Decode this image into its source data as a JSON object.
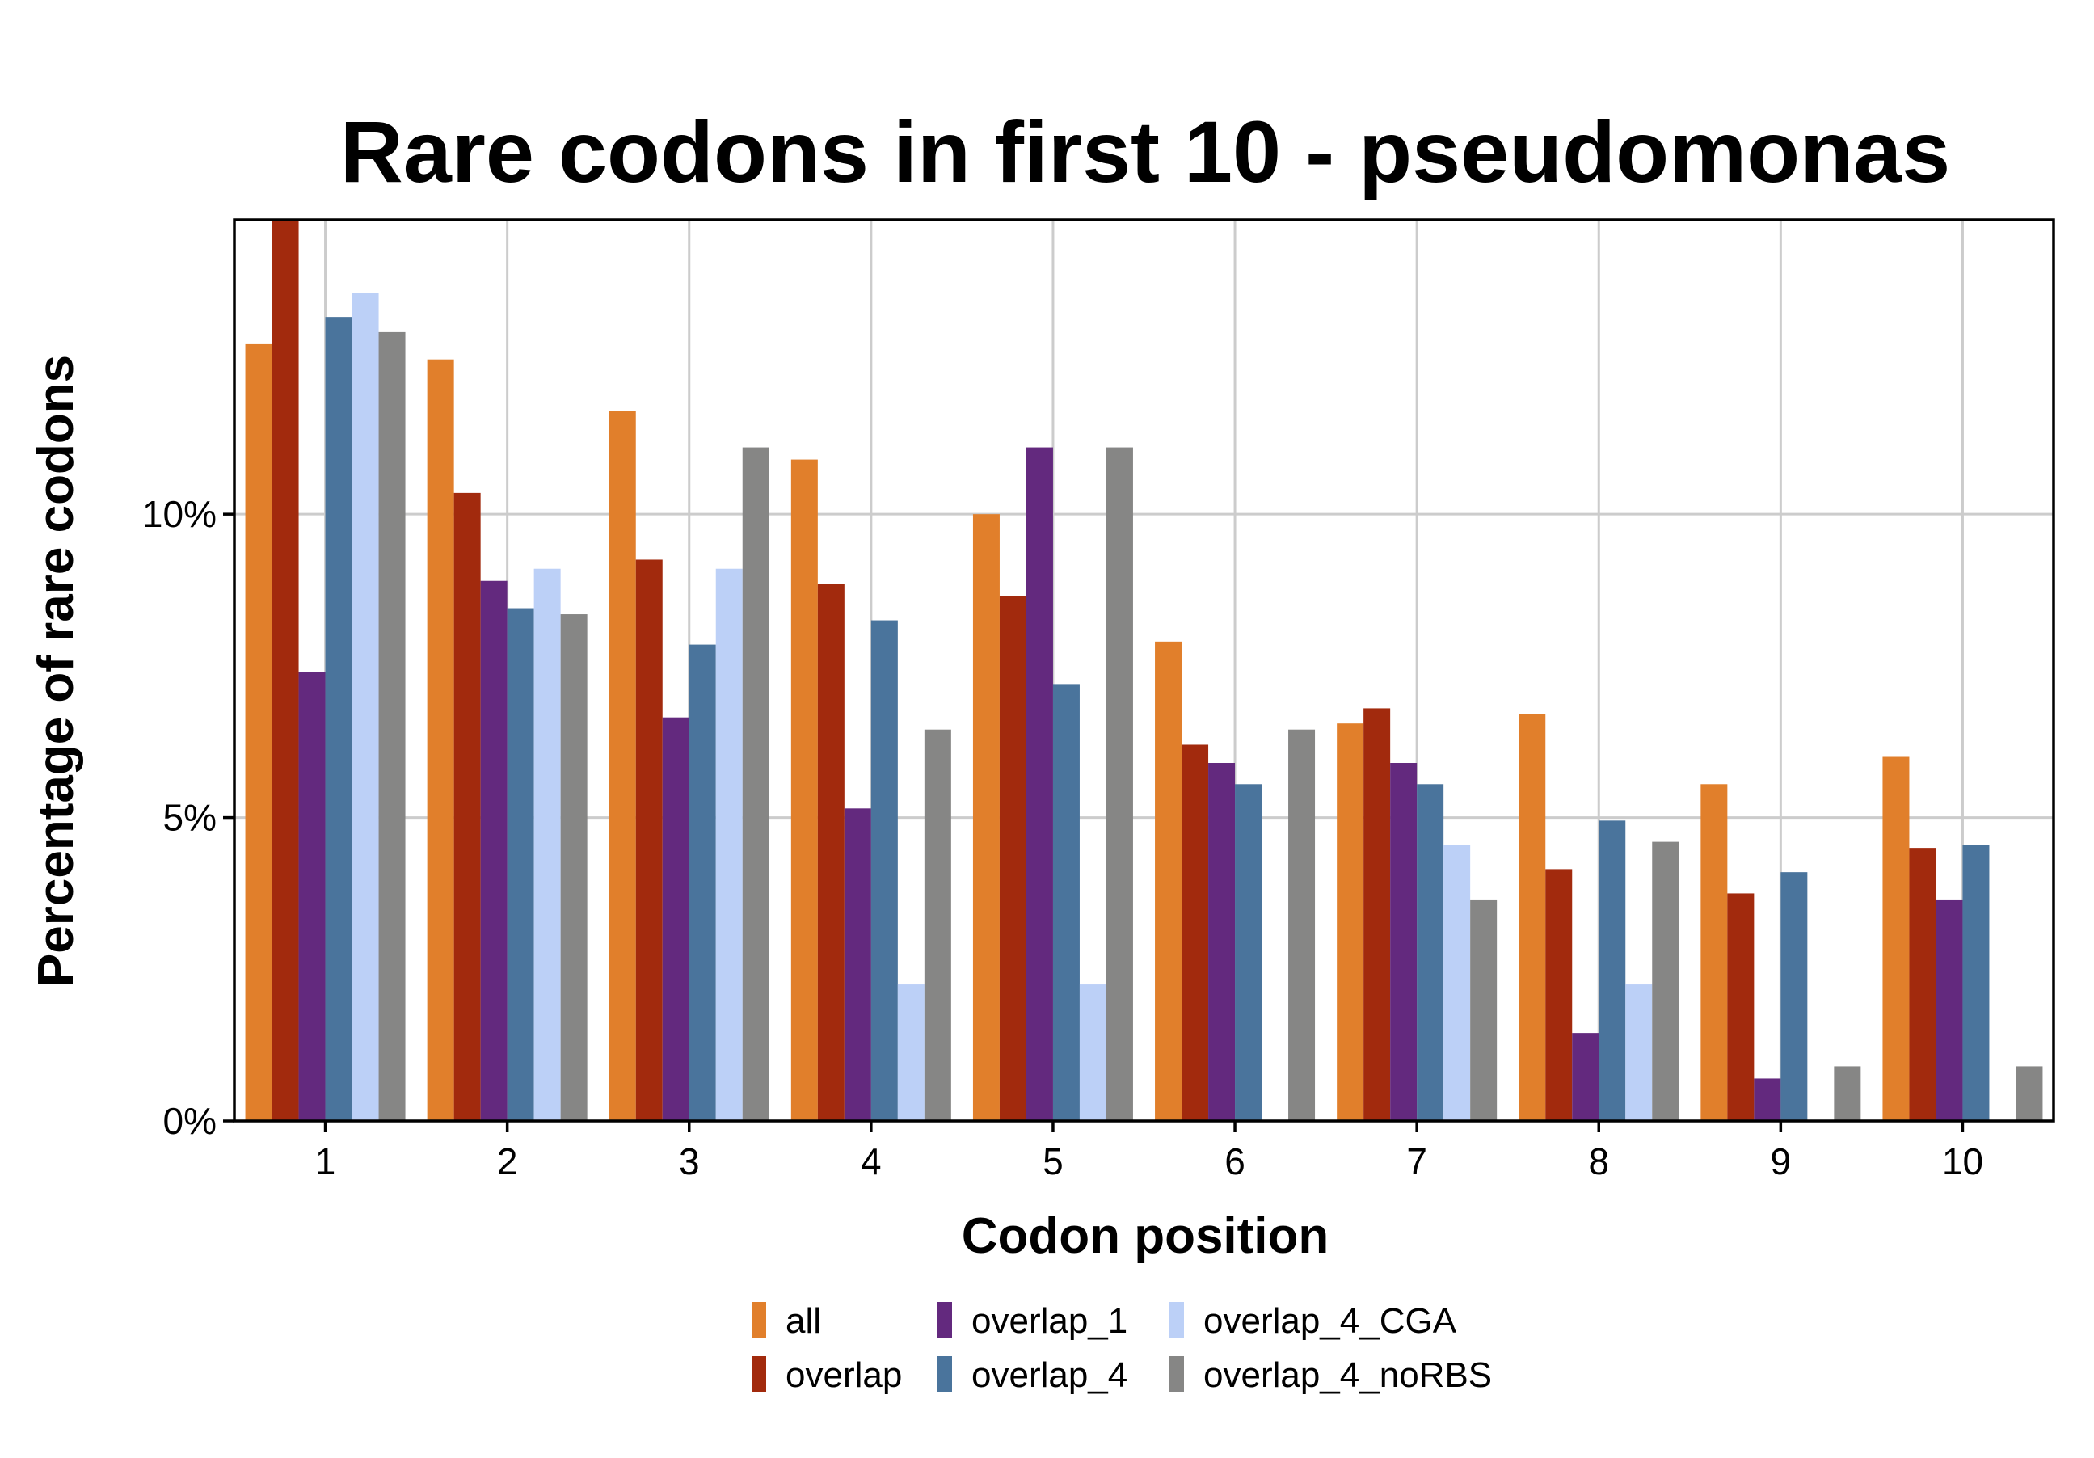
{
  "chart_data": {
    "type": "bar",
    "title": "Rare codons in first 10 - pseudomonas",
    "xlabel": "Codon position",
    "ylabel": "Percentage of rare codons",
    "categories": [
      "1",
      "2",
      "3",
      "4",
      "5",
      "6",
      "7",
      "8",
      "9",
      "10"
    ],
    "y_ticks": [
      {
        "value": 0,
        "label": "0%"
      },
      {
        "value": 5,
        "label": "5%"
      },
      {
        "value": 10,
        "label": "10%"
      }
    ],
    "ylim": [
      0,
      14.85
    ],
    "grid": true,
    "legend_position": "bottom",
    "series": [
      {
        "name": "all",
        "color": "#E17F2B",
        "values": [
          12.8,
          12.55,
          11.7,
          10.9,
          10.0,
          7.9,
          6.55,
          6.7,
          5.55,
          6.0
        ]
      },
      {
        "name": "overlap",
        "color": "#A22A0D",
        "values": [
          14.85,
          10.35,
          9.25,
          8.85,
          8.65,
          6.2,
          6.8,
          4.15,
          3.75,
          4.5
        ]
      },
      {
        "name": "overlap_1",
        "color": "#63297E",
        "values": [
          7.4,
          8.9,
          6.65,
          5.15,
          11.1,
          5.9,
          5.9,
          1.45,
          0.7,
          3.65
        ]
      },
      {
        "name": "overlap_4",
        "color": "#4A749C",
        "values": [
          13.25,
          8.45,
          7.85,
          8.25,
          7.2,
          5.55,
          5.55,
          4.95,
          4.1,
          4.55
        ]
      },
      {
        "name": "overlap_4_CGA",
        "color": "#BCD0F7",
        "values": [
          13.65,
          9.1,
          9.1,
          2.25,
          2.25,
          0,
          4.55,
          2.25,
          0,
          0
        ]
      },
      {
        "name": "overlap_4_noRBS",
        "color": "#868685",
        "values": [
          13.0,
          8.35,
          11.1,
          6.45,
          11.1,
          6.45,
          3.65,
          4.6,
          0.9,
          0.9
        ]
      }
    ]
  }
}
